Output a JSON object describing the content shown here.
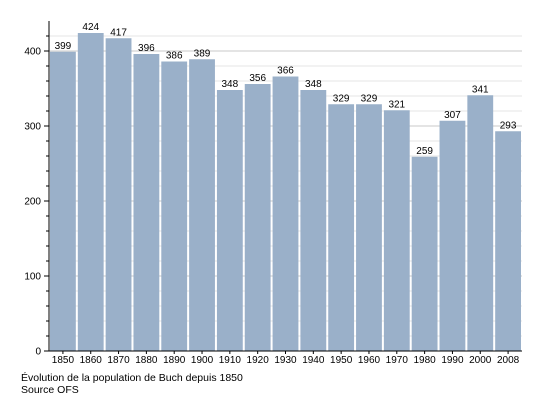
{
  "chart_data": {
    "type": "bar",
    "categories": [
      "1850",
      "1860",
      "1870",
      "1880",
      "1890",
      "1900",
      "1910",
      "1920",
      "1930",
      "1940",
      "1950",
      "1960",
      "1970",
      "1980",
      "1990",
      "2000",
      "2008"
    ],
    "values": [
      399,
      424,
      417,
      396,
      386,
      389,
      348,
      356,
      366,
      348,
      329,
      329,
      321,
      259,
      307,
      341,
      293
    ],
    "data_labels": [
      "399",
      "424",
      "417",
      "396",
      "386",
      "389",
      "348",
      "356",
      "366",
      "348",
      "329",
      "329",
      "321",
      "259",
      "307",
      "341",
      "293"
    ],
    "y_ticks": [
      "0",
      "100",
      "200",
      "300",
      "400"
    ],
    "ylim": [
      0,
      440
    ],
    "grid": true,
    "bar_color": "#9ab0c9",
    "title": "",
    "xlabel": "",
    "ylabel": ""
  },
  "caption": {
    "line1": "Évolution de la population de Buch depuis 1850",
    "line2": "Source OFS"
  }
}
